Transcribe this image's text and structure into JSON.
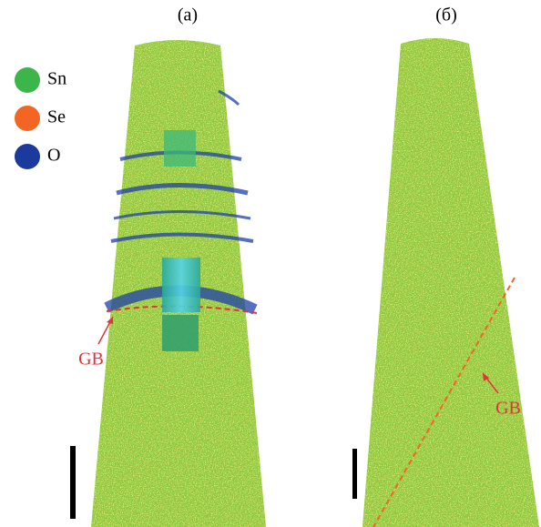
{
  "panels": [
    {
      "label": "(a)"
    },
    {
      "label": "(б)"
    }
  ],
  "legend": [
    {
      "label": "Sn",
      "color": "#3cb54a"
    },
    {
      "label": "Se",
      "color": "#f26522"
    },
    {
      "label": "O",
      "color": "#1b3a9c"
    }
  ],
  "annotations": [
    {
      "text": "GB"
    },
    {
      "text": "GB"
    }
  ]
}
